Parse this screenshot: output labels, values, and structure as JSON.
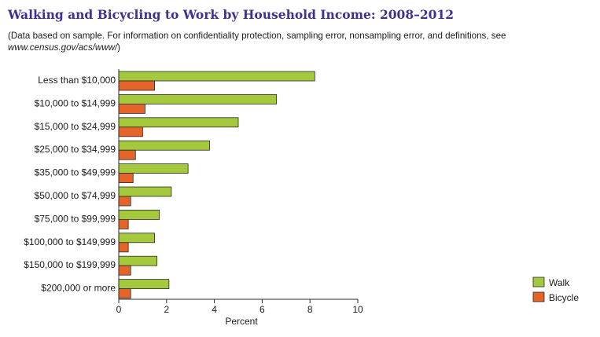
{
  "header": {
    "title": "Walking and Bicycling to Work by Household Income: 2008–2012",
    "note_prefix": "(Data based on sample. For information on confidentiality protection, sampling error, nonsampling error, and definitions, see ",
    "note_url": "www.census.gov/acs/www/",
    "note_suffix": ")"
  },
  "chart_data": {
    "type": "bar",
    "orientation": "horizontal",
    "categories": [
      "Less than $10,000",
      "$10,000 to $14,999",
      "$15,000 to $24,999",
      "$25,000 to $34,999",
      "$35,000 to $49,999",
      "$50,000 to $74,999",
      "$75,000 to $99,999",
      "$100,000 to $149,999",
      "$150,000 to $199,999",
      "$200,000 or more"
    ],
    "series": [
      {
        "name": "Walk",
        "color": "#a5c93c",
        "values": [
          8.2,
          6.6,
          5.0,
          3.8,
          2.9,
          2.2,
          1.7,
          1.5,
          1.6,
          2.1
        ]
      },
      {
        "name": "Bicycle",
        "color": "#e5642a",
        "values": [
          1.5,
          1.1,
          1.0,
          0.7,
          0.6,
          0.5,
          0.4,
          0.4,
          0.5,
          0.5
        ]
      }
    ],
    "xlabel": "Percent",
    "xlim": [
      0,
      10
    ],
    "xticks": [
      "0",
      "2",
      "4",
      "6",
      "8",
      "10"
    ],
    "grid": false,
    "legend_position": "bottom-right"
  }
}
